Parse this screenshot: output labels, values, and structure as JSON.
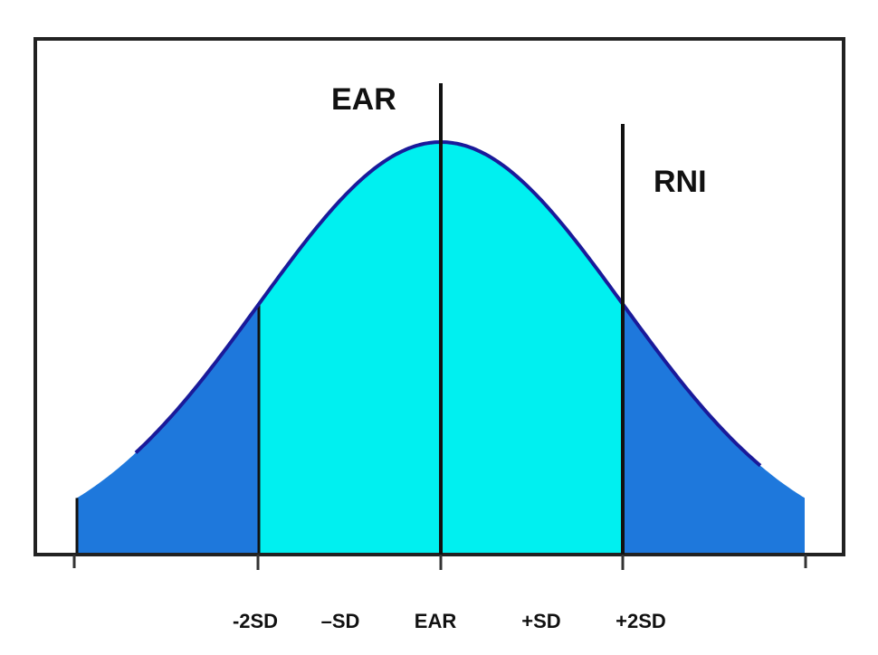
{
  "annotations": {
    "ear": "EAR",
    "rni": "RNI"
  },
  "x_axis": {
    "labels": [
      "-2SD",
      "–SD",
      "EAR",
      "+SD",
      "+2SD"
    ]
  }
}
